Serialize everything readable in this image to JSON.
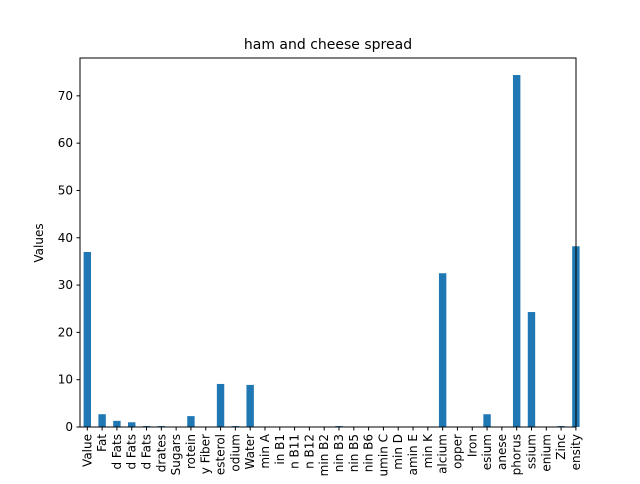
{
  "chart_data": {
    "type": "bar",
    "title": "ham and cheese spread",
    "xlabel": "",
    "ylabel": "Values",
    "ylim": [
      0,
      78
    ],
    "yticks": [
      0,
      10,
      20,
      30,
      40,
      50,
      60,
      70
    ],
    "grid": false,
    "legend": "none",
    "bar_color": "#1f77b4",
    "categories": [
      "Value",
      "Fat",
      "d Fats",
      "d Fats",
      "d Fats",
      "drates",
      "Sugars",
      "rotein",
      "y Fiber",
      "esterol",
      "odium",
      "Water",
      "min A",
      "in B1",
      "n B11",
      "n B12",
      "min B2",
      "nin B3",
      "nin B5",
      "nin B6",
      "umin C",
      "min D",
      "amin E",
      "min K",
      "alcium",
      "opper",
      "Iron",
      "esium",
      "anese",
      "phorus",
      "ssium",
      "enium",
      "Zinc",
      "ensity"
    ],
    "values": [
      37.0,
      2.7,
      1.3,
      1.0,
      0.2,
      0.2,
      0.1,
      2.3,
      0.0,
      9.1,
      0.2,
      8.9,
      0.0,
      0.0,
      0.0,
      0.0,
      0.0,
      0.2,
      0.0,
      0.0,
      0.0,
      0.0,
      0.0,
      0.0,
      32.5,
      0.0,
      0.0,
      2.7,
      0.0,
      74.4,
      24.3,
      0.0,
      0.2,
      38.2
    ]
  }
}
